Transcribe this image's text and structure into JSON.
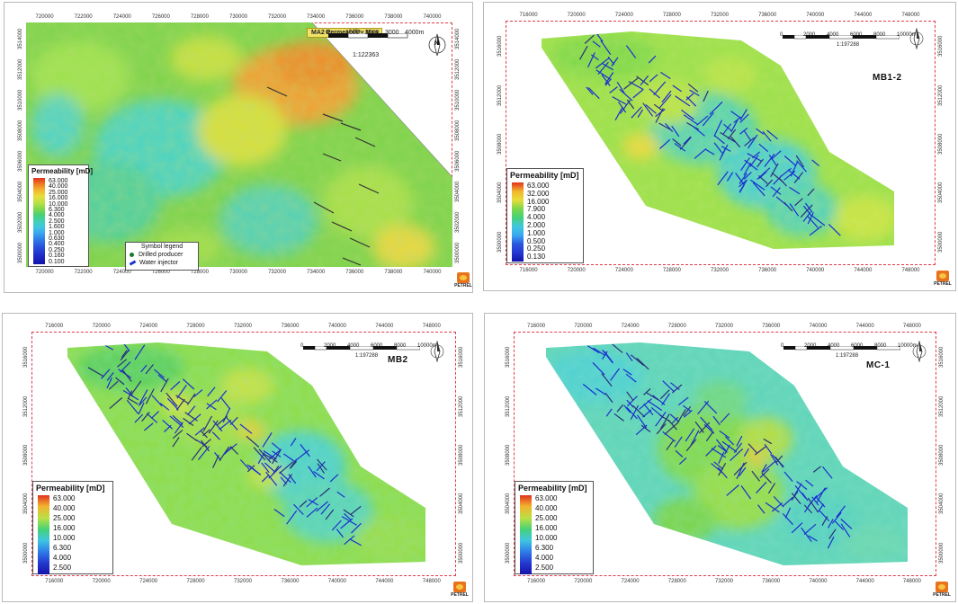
{
  "panels": [
    {
      "id": "ma2",
      "title": "MA2 Permeability Map",
      "label": "",
      "xticks": [
        "720000",
        "722000",
        "724000",
        "726000",
        "728000",
        "730000",
        "732000",
        "734000",
        "736000",
        "738000",
        "740000"
      ],
      "yticks_left": [
        "3514000",
        "3512000",
        "3510000",
        "3508000",
        "3506000",
        "3504000",
        "3502000",
        "3500000"
      ],
      "yticks_right": [
        "3514000",
        "3512000",
        "3510000",
        "3508000",
        "3506000",
        "3504000",
        "3502000",
        "3500000"
      ],
      "scale": {
        "labels": [
          "0",
          "1000",
          "2000",
          "3000",
          "4000m"
        ],
        "ratio": "1:122363"
      },
      "legend": {
        "title": "Permeability [mD]",
        "values": [
          "63.000",
          "40.000",
          "25.000",
          "16.000",
          "10.000",
          "6.300",
          "4.000",
          "2.500",
          "1.600",
          "1.000",
          "0.630",
          "0.400",
          "0.250",
          "0.160",
          "0.100"
        ]
      },
      "symbol_legend": {
        "title": "Symbol legend",
        "items": [
          "Drilled producer",
          "Water injector"
        ]
      }
    },
    {
      "id": "mb12",
      "title": "",
      "label": "MB1-2",
      "xticks": [
        "716000",
        "720000",
        "724000",
        "728000",
        "732000",
        "736000",
        "740000",
        "744000",
        "748000"
      ],
      "yticks_left": [
        "3516000",
        "3512000",
        "3508000",
        "3504000",
        "3500000"
      ],
      "yticks_right": [
        "3516000",
        "3512000",
        "3508000",
        "3504000",
        "3500000"
      ],
      "scale": {
        "labels": [
          "0",
          "2000",
          "4000",
          "6000",
          "8000",
          "10000m"
        ],
        "ratio": "1:197288"
      },
      "legend": {
        "title": "Permeability [mD]",
        "values": [
          "63.000",
          "32.000",
          "16.000",
          "7.900",
          "4.000",
          "2.000",
          "1.000",
          "0.500",
          "0.250",
          "0.130"
        ]
      }
    },
    {
      "id": "mb2",
      "title": "",
      "label": "MB2",
      "xticks": [
        "716000",
        "720000",
        "724000",
        "728000",
        "732000",
        "736000",
        "740000",
        "744000",
        "748000"
      ],
      "yticks_left": [
        "3516000",
        "3512000",
        "3508000",
        "3504000",
        "3500000"
      ],
      "yticks_right": [
        "3516000",
        "3512000",
        "3508000",
        "3504000",
        "3500000"
      ],
      "scale": {
        "labels": [
          "0",
          "2000",
          "4000",
          "6000",
          "8000",
          "10000m"
        ],
        "ratio": "1:197288"
      },
      "legend": {
        "title": "Permeability [mD]",
        "values": [
          "63.000",
          "40.000",
          "25.000",
          "16.000",
          "10.000",
          "6.300",
          "4.000",
          "2.500"
        ]
      }
    },
    {
      "id": "mc1",
      "title": "",
      "label": "MC-1",
      "xticks": [
        "716000",
        "720000",
        "724000",
        "728000",
        "732000",
        "736000",
        "740000",
        "744000",
        "748000"
      ],
      "yticks_left": [
        "3516000",
        "3512000",
        "3508000",
        "3504000",
        "3500000"
      ],
      "yticks_right": [
        "3516000",
        "3512000",
        "3508000",
        "3504000",
        "3500000"
      ],
      "scale": {
        "labels": [
          "0",
          "2000",
          "4000",
          "6000",
          "8000",
          "10000m"
        ],
        "ratio": "1:197288"
      },
      "legend": {
        "title": "Permeability [mD]",
        "values": [
          "63.000",
          "40.000",
          "25.000",
          "16.000",
          "10.000",
          "6.300",
          "4.000",
          "2.500"
        ]
      }
    }
  ],
  "brand": {
    "name": "PETREL"
  },
  "north_arrow": {
    "letter": "N"
  },
  "colors": {
    "frame": "#e23b4b",
    "fracture": "#1a2fd0",
    "producer": "#1d7a2b"
  }
}
